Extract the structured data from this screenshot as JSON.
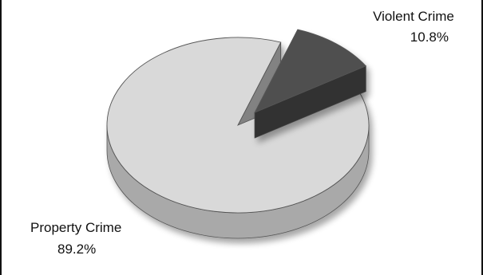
{
  "chart_data": {
    "type": "pie",
    "title": "",
    "slices": [
      {
        "label": "Property Crime",
        "value": 89.2,
        "value_label": "89.2%",
        "color": "#d9d9d9"
      },
      {
        "label": "Violent Crime",
        "value": 10.8,
        "value_label": "10.8%",
        "color": "#505050"
      }
    ],
    "exploded_slice": "Violent Crime",
    "style": "3d",
    "legend": "none"
  }
}
